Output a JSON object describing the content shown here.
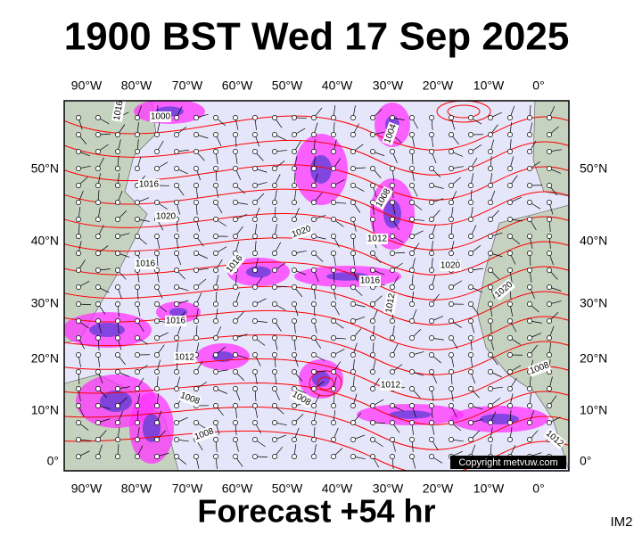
{
  "header": {
    "title": "1900 BST Wed 17 Sep 2025"
  },
  "map": {
    "longitude_labels": [
      "90°W",
      "80°W",
      "70°W",
      "60°W",
      "50°W",
      "40°W",
      "30°W",
      "20°W",
      "10°W",
      "0°"
    ],
    "latitude_labels": [
      "50°N",
      "40°N",
      "30°N",
      "20°N",
      "10°N",
      "0°"
    ],
    "isobar_labels": [
      "1000",
      "1016",
      "1016",
      "1020",
      "1016",
      "1016",
      "1020",
      "1008",
      "1004",
      "1012",
      "1016",
      "1012",
      "1020",
      "1020",
      "1016",
      "1012",
      "1008",
      "1012",
      "1008",
      "1008",
      "1008",
      "1012"
    ],
    "copyright": "Copyright metvuw.com"
  },
  "footer": {
    "forecast": "Forecast +54 hr",
    "image_id": "IM2"
  }
}
